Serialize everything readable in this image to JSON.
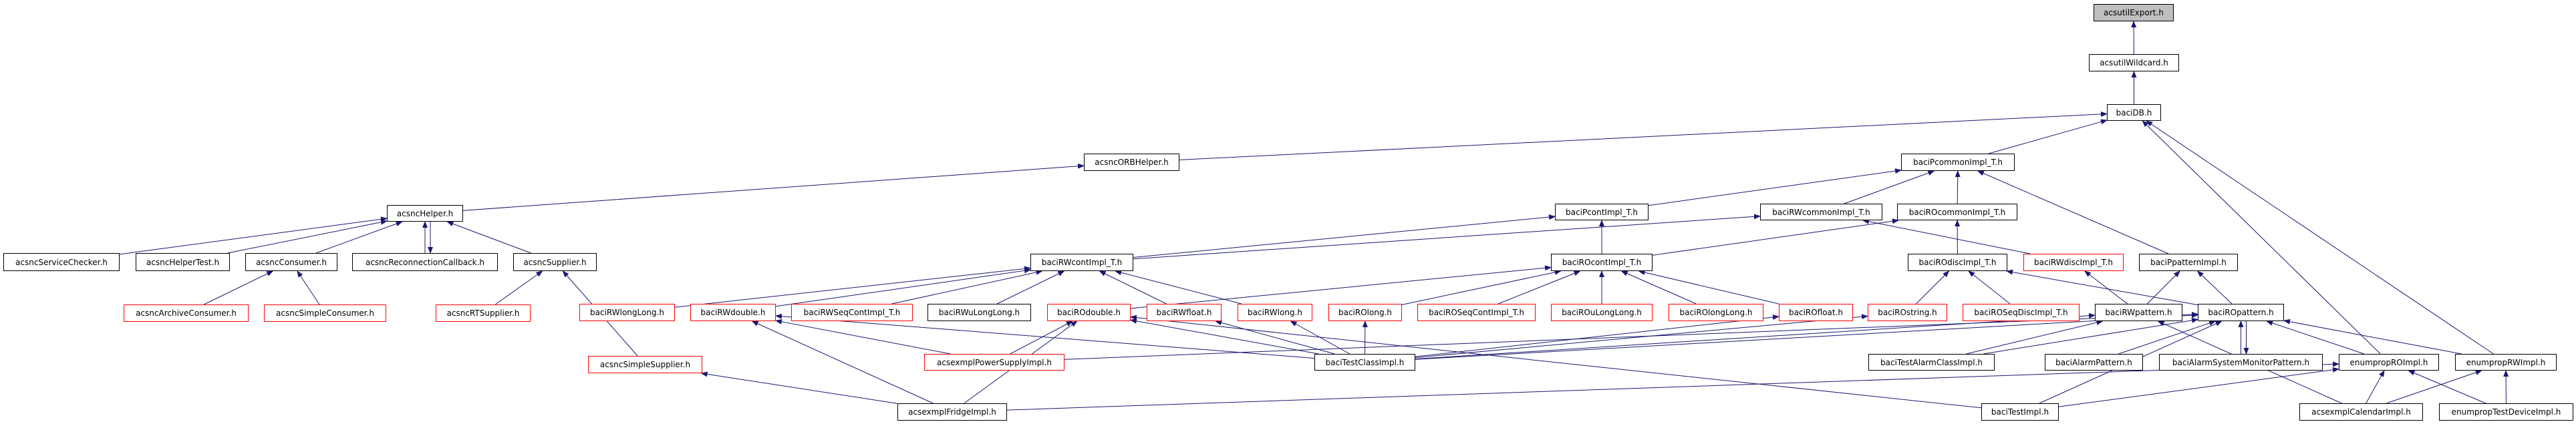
{
  "graph": {
    "edge_color": "#191970",
    "truncated_border_color": "#ff0000",
    "focus_fill_color": "#bfbfbf",
    "nodes": [
      {
        "id": "acsutilExport",
        "label": "acsutilExport.h",
        "style": "focus"
      },
      {
        "id": "acsutilWildcard",
        "label": "acsutilWildcard.h",
        "style": "normal"
      },
      {
        "id": "baciDB",
        "label": "baciDB.h",
        "style": "normal"
      },
      {
        "id": "acsncORBHelper",
        "label": "acsncORBHelper.h",
        "style": "normal"
      },
      {
        "id": "baciPcommonImpl_T",
        "label": "baciPcommonImpl_T.h",
        "style": "normal"
      },
      {
        "id": "acsncHelper",
        "label": "acsncHelper.h",
        "style": "normal"
      },
      {
        "id": "baciPcontImpl_T",
        "label": "baciPcontImpl_T.h",
        "style": "normal"
      },
      {
        "id": "baciRWcommonImpl_T",
        "label": "baciRWcommonImpl_T.h",
        "style": "normal"
      },
      {
        "id": "baciROcommonImpl_T",
        "label": "baciROcommonImpl_T.h",
        "style": "normal"
      },
      {
        "id": "acsncServiceChecker",
        "label": "acsncServiceChecker.h",
        "style": "normal"
      },
      {
        "id": "acsncHelperTest",
        "label": "acsncHelperTest.h",
        "style": "normal"
      },
      {
        "id": "acsncConsumer",
        "label": "acsncConsumer.h",
        "style": "normal"
      },
      {
        "id": "acsncReconnectionCallback",
        "label": "acsncReconnectionCallback.h",
        "style": "normal"
      },
      {
        "id": "acsncSupplier",
        "label": "acsncSupplier.h",
        "style": "normal"
      },
      {
        "id": "baciRWcontImpl_T",
        "label": "baciRWcontImpl_T.h",
        "style": "normal"
      },
      {
        "id": "baciROcontImpl_T",
        "label": "baciROcontImpl_T.h",
        "style": "normal"
      },
      {
        "id": "baciROdiscImpl_T",
        "label": "baciROdiscImpl_T.h",
        "style": "normal"
      },
      {
        "id": "baciRWdiscImpl_T",
        "label": "baciRWdiscImpl_T.h",
        "style": "truncated"
      },
      {
        "id": "baciPpatternImpl",
        "label": "baciPpatternImpl.h",
        "style": "normal"
      },
      {
        "id": "acsncArchiveConsumer",
        "label": "acsncArchiveConsumer.h",
        "style": "truncated"
      },
      {
        "id": "acsncSimpleConsumer",
        "label": "acsncSimpleConsumer.h",
        "style": "truncated"
      },
      {
        "id": "acsncRTSupplier",
        "label": "acsncRTSupplier.h",
        "style": "truncated"
      },
      {
        "id": "baciRWlongLong",
        "label": "baciRWlongLong.h",
        "style": "truncated"
      },
      {
        "id": "baciRWdouble",
        "label": "baciRWdouble.h",
        "style": "truncated"
      },
      {
        "id": "baciRWSeqContImpl_T",
        "label": "baciRWSeqContImpl_T.h",
        "style": "truncated"
      },
      {
        "id": "baciRWuLongLong",
        "label": "baciRWuLongLong.h",
        "style": "normal"
      },
      {
        "id": "baciROdouble",
        "label": "baciROdouble.h",
        "style": "truncated"
      },
      {
        "id": "baciRWfloat",
        "label": "baciRWfloat.h",
        "style": "truncated"
      },
      {
        "id": "baciRWlong",
        "label": "baciRWlong.h",
        "style": "truncated"
      },
      {
        "id": "baciROlong",
        "label": "baciROlong.h",
        "style": "truncated"
      },
      {
        "id": "baciROSeqContImpl_T",
        "label": "baciROSeqContImpl_T.h",
        "style": "truncated"
      },
      {
        "id": "baciROuLongLong",
        "label": "baciROuLongLong.h",
        "style": "truncated"
      },
      {
        "id": "baciROlongLong",
        "label": "baciROlongLong.h",
        "style": "truncated"
      },
      {
        "id": "baciROfloat",
        "label": "baciROfloat.h",
        "style": "truncated"
      },
      {
        "id": "baciROstring",
        "label": "baciROstring.h",
        "style": "truncated"
      },
      {
        "id": "baciROSeqDiscImpl_T",
        "label": "baciROSeqDiscImpl_T.h",
        "style": "truncated"
      },
      {
        "id": "baciRWpattern",
        "label": "baciRWpattern.h",
        "style": "normal"
      },
      {
        "id": "baciROpattern",
        "label": "baciROpattern.h",
        "style": "normal"
      },
      {
        "id": "acsncSimpleSupplier",
        "label": "acsncSimpleSupplier.h",
        "style": "truncated"
      },
      {
        "id": "acsexmplPowerSupplyImpl",
        "label": "acsexmplPowerSupplyImpl.h",
        "style": "truncated"
      },
      {
        "id": "baciTestClassImpl",
        "label": "baciTestClassImpl.h",
        "style": "normal"
      },
      {
        "id": "baciTestAlarmClassImpl",
        "label": "baciTestAlarmClassImpl.h",
        "style": "normal"
      },
      {
        "id": "baciAlarmPattern",
        "label": "baciAlarmPattern.h",
        "style": "normal"
      },
      {
        "id": "baciAlarmSystemMonitorPattern",
        "label": "baciAlarmSystemMonitorPattern.h",
        "style": "normal"
      },
      {
        "id": "enumpropROImpl",
        "label": "enumpropROImpl.h",
        "style": "normal"
      },
      {
        "id": "enumpropRWImpl",
        "label": "enumpropRWImpl.h",
        "style": "normal"
      },
      {
        "id": "acsexmplFridgeImpl",
        "label": "acsexmplFridgeImpl.h",
        "style": "normal"
      },
      {
        "id": "baciTestImpl",
        "label": "baciTestImpl.h",
        "style": "normal"
      },
      {
        "id": "acsexmplCalendarImpl",
        "label": "acsexmplCalendarImpl.h",
        "style": "normal"
      },
      {
        "id": "enumpropTestDeviceImpl",
        "label": "enumpropTestDeviceImpl.h",
        "style": "normal"
      }
    ],
    "edges": [
      [
        "acsutilWildcard",
        "acsutilExport"
      ],
      [
        "baciDB",
        "acsutilWildcard"
      ],
      [
        "acsncORBHelper",
        "baciDB"
      ],
      [
        "acsncHelper",
        "acsncORBHelper"
      ],
      [
        "baciPcommonImpl_T",
        "baciDB"
      ],
      [
        "enumpropROImpl",
        "baciDB"
      ],
      [
        "enumpropRWImpl",
        "baciDB"
      ],
      [
        "baciRWcommonImpl_T",
        "baciPcommonImpl_T"
      ],
      [
        "baciROcommonImpl_T",
        "baciPcommonImpl_T"
      ],
      [
        "baciPpatternImpl",
        "baciPcommonImpl_T"
      ],
      [
        "baciPcontImpl_T",
        "baciPcommonImpl_T"
      ],
      [
        "baciRWcontImpl_T",
        "baciPcontImpl_T"
      ],
      [
        "baciRWcontImpl_T",
        "baciRWcommonImpl_T"
      ],
      [
        "baciROcontImpl_T",
        "baciPcontImpl_T"
      ],
      [
        "baciROcontImpl_T",
        "baciROcommonImpl_T"
      ],
      [
        "baciRWdiscImpl_T",
        "baciRWcommonImpl_T"
      ],
      [
        "baciROdiscImpl_T",
        "baciROcommonImpl_T"
      ],
      [
        "acsncServiceChecker",
        "acsncHelper"
      ],
      [
        "acsncHelperTest",
        "acsncHelper"
      ],
      [
        "acsncConsumer",
        "acsncHelper"
      ],
      [
        "acsncReconnectionCallback",
        "acsncHelper"
      ],
      [
        "acsncHelper",
        "acsncReconnectionCallback"
      ],
      [
        "acsncSupplier",
        "acsncHelper"
      ],
      [
        "acsncArchiveConsumer",
        "acsncConsumer"
      ],
      [
        "acsncSimpleConsumer",
        "acsncConsumer"
      ],
      [
        "acsncRTSupplier",
        "acsncSupplier"
      ],
      [
        "acsncSimpleSupplier",
        "acsncSupplier"
      ],
      [
        "acsexmplFridgeImpl",
        "acsncSimpleSupplier"
      ],
      [
        "baciRWlongLong",
        "baciRWcontImpl_T"
      ],
      [
        "baciRWdouble",
        "baciRWcontImpl_T"
      ],
      [
        "baciRWSeqContImpl_T",
        "baciRWcontImpl_T"
      ],
      [
        "baciRWuLongLong",
        "baciRWcontImpl_T"
      ],
      [
        "baciRWfloat",
        "baciRWcontImpl_T"
      ],
      [
        "baciRWlong",
        "baciRWcontImpl_T"
      ],
      [
        "baciROdouble",
        "baciROcontImpl_T"
      ],
      [
        "baciROlong",
        "baciROcontImpl_T"
      ],
      [
        "baciROSeqContImpl_T",
        "baciROcontImpl_T"
      ],
      [
        "baciROuLongLong",
        "baciROcontImpl_T"
      ],
      [
        "baciROlongLong",
        "baciROcontImpl_T"
      ],
      [
        "baciROfloat",
        "baciROcontImpl_T"
      ],
      [
        "baciROstring",
        "baciROdiscImpl_T"
      ],
      [
        "baciROSeqDiscImpl_T",
        "baciROdiscImpl_T"
      ],
      [
        "baciROpattern",
        "baciROdiscImpl_T"
      ],
      [
        "baciRWpattern",
        "baciRWdiscImpl_T"
      ],
      [
        "baciRWpattern",
        "baciPpatternImpl"
      ],
      [
        "baciROpattern",
        "baciPpatternImpl"
      ],
      [
        "acsexmplPowerSupplyImpl",
        "baciRWdouble"
      ],
      [
        "acsexmplFridgeImpl",
        "baciRWdouble"
      ],
      [
        "baciTestClassImpl",
        "baciRWdouble"
      ],
      [
        "acsexmplPowerSupplyImpl",
        "baciROdouble"
      ],
      [
        "acsexmplFridgeImpl",
        "baciROdouble"
      ],
      [
        "baciTestClassImpl",
        "baciROdouble"
      ],
      [
        "baciTestImpl",
        "baciROdouble"
      ],
      [
        "baciTestClassImpl",
        "baciRWfloat"
      ],
      [
        "baciTestClassImpl",
        "baciRWlong"
      ],
      [
        "baciTestClassImpl",
        "baciROlong"
      ],
      [
        "baciTestClassImpl",
        "baciROfloat"
      ],
      [
        "baciTestClassImpl",
        "baciROstring"
      ],
      [
        "baciTestClassImpl",
        "baciRWpattern"
      ],
      [
        "baciTestAlarmClassImpl",
        "baciRWpattern"
      ],
      [
        "acsexmplCalendarImpl",
        "baciRWpattern"
      ],
      [
        "baciTestClassImpl",
        "baciROpattern"
      ],
      [
        "baciTestAlarmClassImpl",
        "baciROpattern"
      ],
      [
        "baciAlarmPattern",
        "baciROpattern"
      ],
      [
        "baciAlarmSystemMonitorPattern",
        "baciROpattern"
      ],
      [
        "baciROpattern",
        "baciAlarmSystemMonitorPattern"
      ],
      [
        "enumpropROImpl",
        "baciROpattern"
      ],
      [
        "enumpropRWImpl",
        "baciROpattern"
      ],
      [
        "baciTestImpl",
        "baciROpattern"
      ],
      [
        "acsexmplPowerSupplyImpl",
        "baciROpattern"
      ],
      [
        "acsexmplFridgeImpl",
        "enumpropROImpl"
      ],
      [
        "baciTestImpl",
        "enumpropROImpl"
      ],
      [
        "acsexmplCalendarImpl",
        "enumpropROImpl"
      ],
      [
        "enumpropTestDeviceImpl",
        "enumpropROImpl"
      ],
      [
        "acsexmplCalendarImpl",
        "enumpropRWImpl"
      ],
      [
        "enumpropTestDeviceImpl",
        "enumpropRWImpl"
      ]
    ]
  }
}
